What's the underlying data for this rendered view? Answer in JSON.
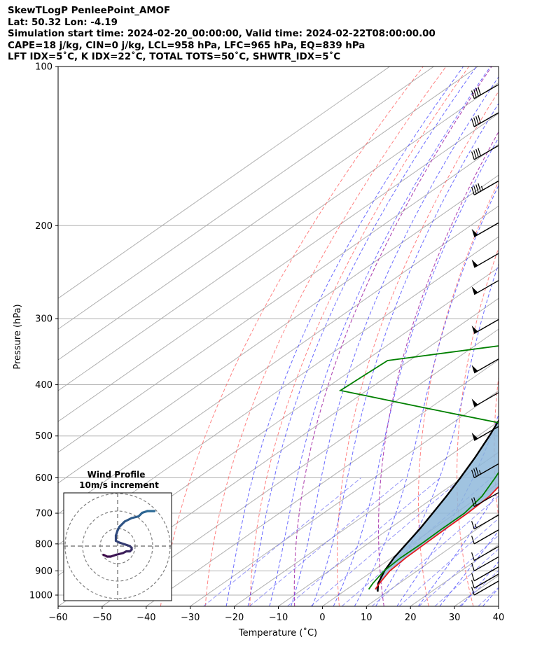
{
  "header": {
    "line1": "SkewTLogP PenleePoint_AMOF",
    "line2": "Lat: 50.32   Lon: -4.19",
    "line3": "Simulation start time: 2024-02-20_00:00:00, Valid time: 2024-02-22T08:00:00.00",
    "line4": "CAPE=18 j/kg, CIN=0 j/kg, LCL=958 hPa, LFC=965 hPa, EQ=839 hPa",
    "line5": "LFT IDX=5˚C, K IDX=22˚C, TOTAL TOTS=50˚C, SHWTR_IDX=5˚C"
  },
  "colors": {
    "temperature": "#e31a1c",
    "dewpoint": "#008000",
    "parcel": "#000000",
    "cape_fill": "#8fb9da",
    "dry_adiabat": "#ff4d4d",
    "moist_adiabat": "#3b3bff",
    "mixing_ratio": "#7a7af5",
    "isotherm": "#a8a8a8",
    "hodograph_start": "#3e0a4a",
    "hodograph_end": "#2b6a96"
  },
  "chart_data": {
    "type": "line",
    "subtype": "skew-t log-p",
    "xlabel": "Temperature (˚C)",
    "ylabel": "Pressure (hPa)",
    "xlim": [
      -60,
      40
    ],
    "ylim": [
      1050,
      100
    ],
    "y_scale": "log",
    "x_ticks": [
      "−60",
      "−50",
      "−40",
      "−30",
      "−20",
      "−10",
      "0",
      "10",
      "20",
      "30",
      "40"
    ],
    "x_tick_values": [
      -60,
      -50,
      -40,
      -30,
      -20,
      -10,
      0,
      10,
      20,
      30,
      40
    ],
    "y_ticks": [
      "1000",
      "900",
      "800",
      "700",
      "600",
      "500",
      "400",
      "300",
      "200",
      "100"
    ],
    "y_tick_values": [
      1000,
      900,
      800,
      700,
      600,
      500,
      400,
      300,
      200,
      100
    ],
    "grid": true,
    "series": [
      {
        "key": "temperature",
        "points": [
          [
            975,
            6.5
          ],
          [
            950,
            5.5
          ],
          [
            900,
            3.8
          ],
          [
            850,
            3.2
          ],
          [
            800,
            3.0
          ],
          [
            750,
            2.8
          ],
          [
            700,
            2.7
          ],
          [
            650,
            2.2
          ],
          [
            600,
            0.2
          ],
          [
            550,
            -1.9
          ],
          [
            500,
            -4.5
          ],
          [
            450,
            -5.6
          ],
          [
            400,
            -9.5
          ],
          [
            350,
            -17.5
          ],
          [
            300,
            -26.5
          ],
          [
            260,
            -33.5
          ],
          [
            240,
            -35.5
          ],
          [
            220,
            -36.6
          ],
          [
            200,
            -38.5
          ],
          [
            180,
            -40.5
          ],
          [
            160,
            -43.5
          ],
          [
            140,
            -49.5
          ],
          [
            120,
            -56
          ],
          [
            100,
            -65
          ]
        ]
      },
      {
        "key": "dewpoint",
        "points": [
          [
            975,
            5.0
          ],
          [
            950,
            4.0
          ],
          [
            900,
            2.5
          ],
          [
            850,
            2.0
          ],
          [
            800,
            2.2
          ],
          [
            750,
            2.0
          ],
          [
            700,
            2.0
          ],
          [
            650,
            0.5
          ],
          [
            600,
            -2.5
          ],
          [
            550,
            -6
          ],
          [
            500,
            -10.5
          ],
          [
            480,
            -14
          ],
          [
            440,
            -43
          ],
          [
            410,
            -66
          ],
          [
            360,
            -65
          ],
          [
            335,
            -42
          ],
          [
            310,
            -39
          ],
          [
            290,
            -38
          ],
          [
            260,
            -40.5
          ],
          [
            230,
            -44
          ],
          [
            200,
            -48.5
          ],
          [
            170,
            -54
          ],
          [
            150,
            -58
          ],
          [
            130,
            -65
          ],
          [
            100,
            -84
          ]
        ]
      },
      {
        "key": "parcel",
        "points": [
          [
            985,
            7.8
          ],
          [
            950,
            5.2
          ],
          [
            900,
            2.6
          ],
          [
            850,
            0.5
          ],
          [
            800,
            -1.2
          ],
          [
            750,
            -3.0
          ],
          [
            700,
            -5.2
          ],
          [
            650,
            -7.6
          ],
          [
            600,
            -10.4
          ],
          [
            550,
            -13.6
          ],
          [
            500,
            -17.4
          ],
          [
            450,
            -21.9
          ],
          [
            400,
            -27.2
          ],
          [
            350,
            -33.6
          ],
          [
            300,
            -41.3
          ],
          [
            250,
            -50.6
          ],
          [
            200,
            -62.1
          ],
          [
            150,
            -76.6
          ],
          [
            125,
            -85.8
          ],
          [
            100,
            -96.8
          ]
        ]
      }
    ],
    "barbs": [
      {
        "p": 1000,
        "flags": 0,
        "full": 1,
        "half": 0
      },
      {
        "p": 970,
        "flags": 0,
        "full": 1,
        "half": 0
      },
      {
        "p": 940,
        "flags": 0,
        "full": 1,
        "half": 0
      },
      {
        "p": 900,
        "flags": 0,
        "full": 1,
        "half": 0
      },
      {
        "p": 860,
        "flags": 0,
        "full": 1,
        "half": 0
      },
      {
        "p": 800,
        "flags": 0,
        "full": 1,
        "half": 0
      },
      {
        "p": 750,
        "flags": 0,
        "full": 1,
        "half": 1
      },
      {
        "p": 680,
        "flags": 0,
        "full": 2,
        "half": 0
      },
      {
        "p": 600,
        "flags": 0,
        "full": 3,
        "half": 1
      },
      {
        "p": 510,
        "flags": 1,
        "full": 0,
        "half": 0
      },
      {
        "p": 440,
        "flags": 1,
        "full": 0,
        "half": 0
      },
      {
        "p": 380,
        "flags": 1,
        "full": 0,
        "half": 0
      },
      {
        "p": 320,
        "flags": 1,
        "full": 0,
        "half": 0
      },
      {
        "p": 270,
        "flags": 1,
        "full": 0,
        "half": 0
      },
      {
        "p": 240,
        "flags": 1,
        "full": 0,
        "half": 0
      },
      {
        "p": 210,
        "flags": 1,
        "full": 0,
        "half": 0
      },
      {
        "p": 175,
        "flags": 0,
        "full": 4,
        "half": 1
      },
      {
        "p": 150,
        "flags": 0,
        "full": 4,
        "half": 0
      },
      {
        "p": 130,
        "flags": 0,
        "full": 4,
        "half": 0
      },
      {
        "p": 115,
        "flags": 0,
        "full": 4,
        "half": 0
      }
    ],
    "hodograph": {
      "title": "Wind Profile",
      "subtitle": "10m/s increment",
      "ring_step_ms": 10,
      "rings": 3,
      "points": [
        [
          -8,
          5
        ],
        [
          -6,
          6
        ],
        [
          -4,
          6
        ],
        [
          -1,
          5
        ],
        [
          3,
          4
        ],
        [
          5,
          3
        ],
        [
          6,
          3
        ],
        [
          7,
          3
        ],
        [
          8,
          2
        ],
        [
          8,
          1
        ],
        [
          7,
          0
        ],
        [
          4,
          -1
        ],
        [
          1,
          -2
        ],
        [
          -1,
          -3
        ],
        [
          -1,
          -6
        ],
        [
          0,
          -9
        ],
        [
          1,
          -11
        ],
        [
          4,
          -14
        ],
        [
          8,
          -16
        ],
        [
          12,
          -17
        ],
        [
          14,
          -19
        ],
        [
          17,
          -20
        ],
        [
          21,
          -20
        ]
      ]
    }
  }
}
